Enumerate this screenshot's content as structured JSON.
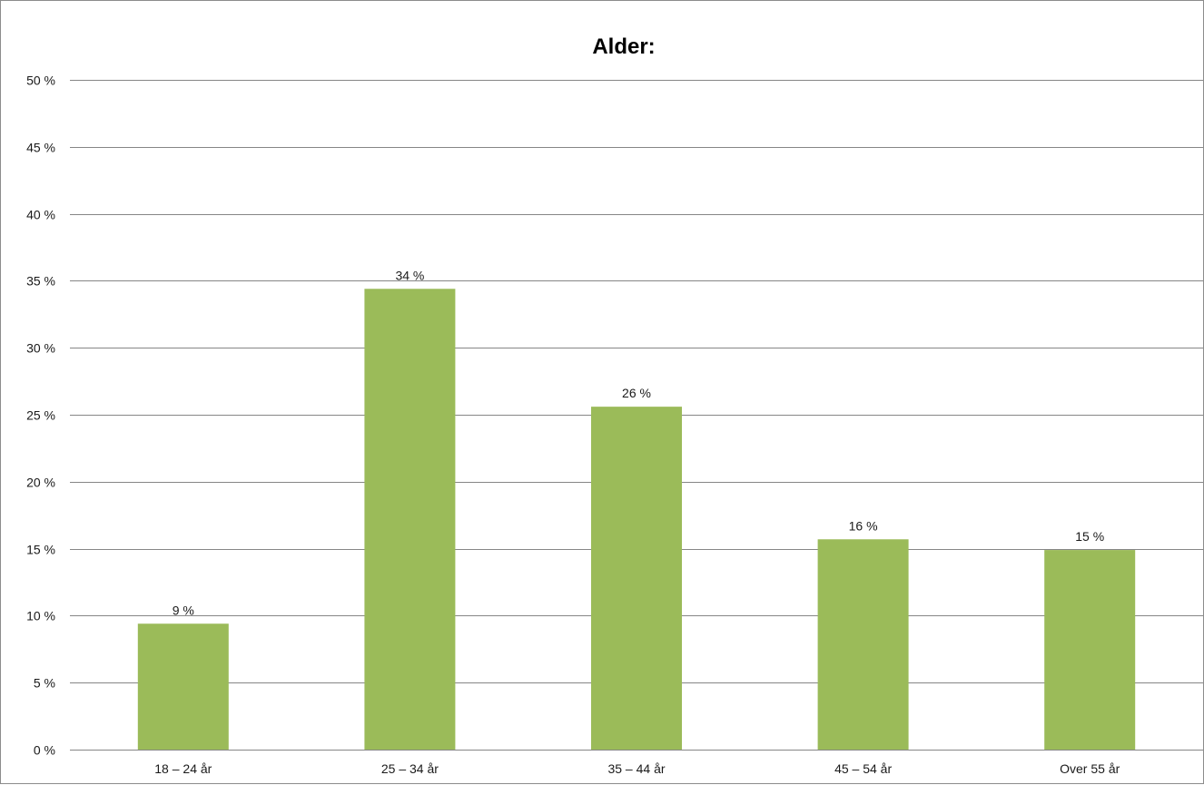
{
  "chart_data": {
    "type": "bar",
    "title": "Alder:",
    "xlabel": "",
    "ylabel": "",
    "categories": [
      "18 – 24 år",
      "25 – 34 år",
      "35 – 44 år",
      "45 – 54 år",
      "Over 55 år"
    ],
    "values": [
      9.4,
      34.4,
      25.6,
      15.7,
      14.9
    ],
    "data_labels": [
      "9 %",
      "34 %",
      "26 %",
      "16 %",
      "15 %"
    ],
    "ylim": [
      0,
      50
    ],
    "y_ticks": [
      0,
      5,
      10,
      15,
      20,
      25,
      30,
      35,
      40,
      45,
      50
    ],
    "y_tick_labels": [
      "0 %",
      "5 %",
      "10 %",
      "15 %",
      "20 %",
      "25 %",
      "30 %",
      "35 %",
      "40 %",
      "45 %",
      "50 %"
    ],
    "grid": true,
    "legend": "none",
    "bar_color": "#9bbb59",
    "gridline_color": "#868686"
  }
}
